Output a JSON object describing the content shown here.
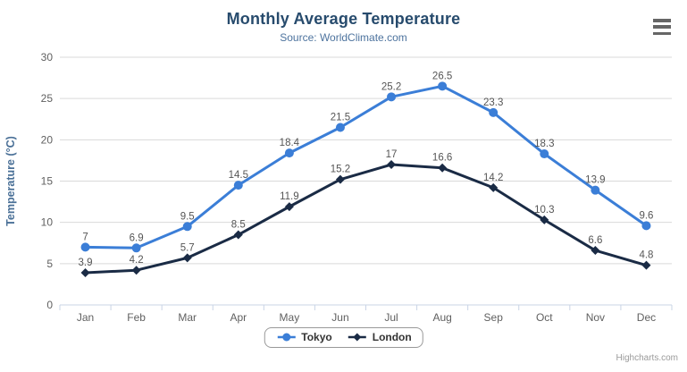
{
  "chart": {
    "title": "Monthly Average Temperature",
    "subtitle": "Source: WorldClimate.com",
    "credits": "Highcharts.com",
    "export_menu_icon": "hamburger-menu-icon"
  },
  "chart_data": {
    "type": "line",
    "title": "Monthly Average Temperature",
    "subtitle": "Source: WorldClimate.com",
    "categories": [
      "Jan",
      "Feb",
      "Mar",
      "Apr",
      "May",
      "Jun",
      "Jul",
      "Aug",
      "Sep",
      "Oct",
      "Nov",
      "Dec"
    ],
    "series": [
      {
        "name": "Tokyo",
        "color": "#3b7ed7",
        "marker": "circle",
        "values": [
          7,
          6.9,
          9.5,
          14.5,
          18.4,
          21.5,
          25.2,
          26.5,
          23.3,
          18.3,
          13.9,
          9.6
        ]
      },
      {
        "name": "London",
        "color": "#1a2b45",
        "marker": "diamond",
        "values": [
          3.9,
          4.2,
          5.7,
          8.5,
          11.9,
          15.2,
          17,
          16.6,
          14.2,
          10.3,
          6.6,
          4.8
        ]
      }
    ],
    "xlabel": "",
    "ylabel": "Temperature (°C)",
    "ylim": [
      0,
      30
    ],
    "yticks": [
      0,
      5,
      10,
      15,
      20,
      25,
      30
    ],
    "grid": true,
    "data_labels": true,
    "legend_position": "bottom-center"
  },
  "colors": {
    "title": "#274b6d",
    "subtitle": "#4d739e",
    "y_axis_title": "#4a7097",
    "axis_label": "#606060",
    "data_label": "#555555",
    "grid": "#d9d9d9",
    "axis_line": "#c9d4e6",
    "legend_text": "#333333",
    "legend_border": "#999999",
    "credits": "#9a9a9a",
    "menu_icon": "#666666"
  }
}
